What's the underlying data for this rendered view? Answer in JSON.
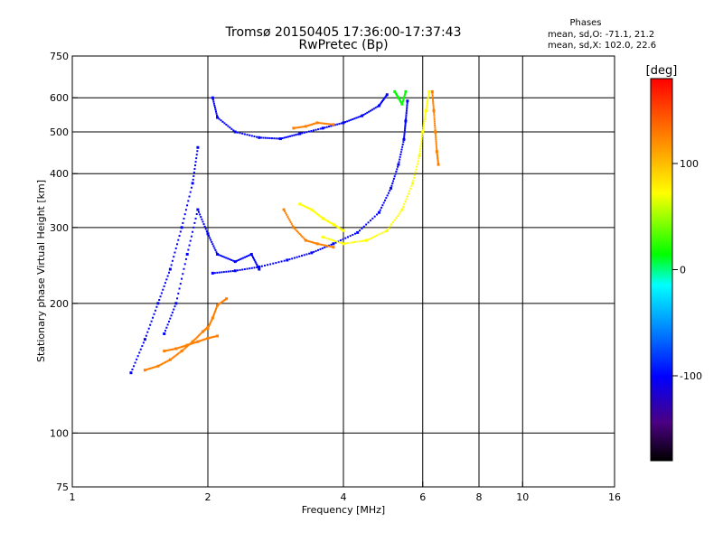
{
  "chart_data": {
    "type": "scatter",
    "title": "Tromsø 20150405 17:36:00-17:37:43",
    "subtitle": "RwPretec (Bp)",
    "phases_header": {
      "title": "Phases",
      "line_o": "mean, sd,O: -71.1, 21.2",
      "line_x": "mean, sd,X: 102.0, 22.6"
    },
    "xlabel": "Frequency [MHz]",
    "ylabel": "Stationary phase Virtual Height [km]",
    "x_scale": "log",
    "y_scale": "log",
    "xlim": [
      1,
      16
    ],
    "ylim": [
      75,
      750
    ],
    "x_ticks": [
      1,
      2,
      4,
      6,
      8,
      10,
      16
    ],
    "x_tick_labels": [
      "1",
      "2",
      "4",
      "6",
      "8",
      "10",
      "16"
    ],
    "y_ticks": [
      75,
      100,
      200,
      300,
      400,
      500,
      600,
      750
    ],
    "y_tick_labels": [
      "75",
      "100",
      "200",
      "300",
      "400",
      "500",
      "600",
      "750"
    ],
    "grid_x": [
      2,
      4,
      6,
      8,
      10
    ],
    "grid_y": [
      100,
      200,
      300,
      400,
      500,
      600
    ],
    "colorbar": {
      "label": "[deg]",
      "range": [
        -180,
        180
      ],
      "ticks": [
        100,
        0,
        -100
      ],
      "tick_labels": [
        "100",
        "0",
        "-100"
      ],
      "colors": [
        "#000000",
        "#4b0082",
        "#0000ff",
        "#0096ff",
        "#00ffff",
        "#00ff00",
        "#ffff00",
        "#ff8000",
        "#ff0000"
      ]
    },
    "series": [
      {
        "points": [
          [
            1.45,
            140
          ],
          [
            1.55,
            143
          ],
          [
            1.65,
            148
          ],
          [
            1.75,
            155
          ],
          [
            1.85,
            163
          ],
          [
            1.95,
            172
          ],
          [
            2.0,
            176
          ]
        ],
        "phase": 150
      },
      {
        "points": [
          [
            1.6,
            155
          ],
          [
            1.7,
            157
          ],
          [
            1.8,
            160
          ],
          [
            1.9,
            163
          ],
          [
            2.0,
            166
          ],
          [
            2.1,
            168
          ]
        ],
        "phase": 140
      },
      {
        "points": [
          [
            2.0,
            175
          ],
          [
            2.05,
            185
          ],
          [
            2.1,
            198
          ],
          [
            2.2,
            205
          ]
        ],
        "phase": 145
      },
      {
        "points": [
          [
            1.35,
            138
          ],
          [
            1.45,
            165
          ],
          [
            1.55,
            200
          ],
          [
            1.65,
            240
          ],
          [
            1.75,
            300
          ],
          [
            1.85,
            380
          ],
          [
            1.9,
            460
          ]
        ],
        "phase": -75
      },
      {
        "points": [
          [
            1.6,
            170
          ],
          [
            1.7,
            200
          ],
          [
            1.8,
            260
          ],
          [
            1.9,
            330
          ],
          [
            2.0,
            290
          ],
          [
            2.1,
            260
          ],
          [
            2.3,
            250
          ],
          [
            2.5,
            260
          ],
          [
            2.6,
            240
          ]
        ],
        "phase": -70
      },
      {
        "points": [
          [
            2.05,
            235
          ],
          [
            2.3,
            238
          ],
          [
            2.6,
            243
          ],
          [
            3.0,
            252
          ],
          [
            3.4,
            262
          ],
          [
            3.8,
            275
          ],
          [
            4.3,
            292
          ],
          [
            4.8,
            325
          ],
          [
            5.1,
            370
          ],
          [
            5.3,
            420
          ],
          [
            5.45,
            480
          ],
          [
            5.5,
            530
          ],
          [
            5.55,
            590
          ]
        ],
        "phase": -95
      },
      {
        "points": [
          [
            2.05,
            600
          ],
          [
            2.1,
            540
          ],
          [
            2.3,
            500
          ],
          [
            2.6,
            485
          ],
          [
            2.9,
            482
          ],
          [
            3.2,
            495
          ],
          [
            3.6,
            510
          ],
          [
            4.0,
            525
          ],
          [
            4.4,
            545
          ],
          [
            4.8,
            575
          ],
          [
            5.0,
            610
          ]
        ],
        "phase": -80
      },
      {
        "points": [
          [
            3.1,
            510
          ],
          [
            3.3,
            515
          ],
          [
            3.5,
            525
          ],
          [
            3.8,
            520
          ]
        ],
        "phase": 140
      },
      {
        "points": [
          [
            2.95,
            330
          ],
          [
            3.1,
            300
          ],
          [
            3.3,
            280
          ],
          [
            3.5,
            275
          ],
          [
            3.8,
            270
          ]
        ],
        "phase": 150
      },
      {
        "points": [
          [
            3.2,
            340
          ],
          [
            3.4,
            330
          ],
          [
            3.6,
            315
          ],
          [
            3.8,
            305
          ],
          [
            4.0,
            295
          ]
        ],
        "phase": 110
      },
      {
        "points": [
          [
            3.6,
            285
          ],
          [
            4.0,
            275
          ],
          [
            4.5,
            280
          ],
          [
            5.0,
            295
          ],
          [
            5.4,
            330
          ],
          [
            5.7,
            380
          ],
          [
            5.9,
            440
          ],
          [
            6.0,
            500
          ],
          [
            6.1,
            560
          ],
          [
            6.2,
            620
          ]
        ],
        "phase": 100
      },
      {
        "points": [
          [
            6.3,
            620
          ],
          [
            6.35,
            560
          ],
          [
            6.4,
            500
          ],
          [
            6.45,
            450
          ],
          [
            6.5,
            420
          ]
        ],
        "phase": 120
      },
      {
        "points": [
          [
            5.2,
            620
          ],
          [
            5.3,
            600
          ],
          [
            5.4,
            580
          ],
          [
            5.5,
            620
          ]
        ],
        "phase": 60
      }
    ]
  }
}
